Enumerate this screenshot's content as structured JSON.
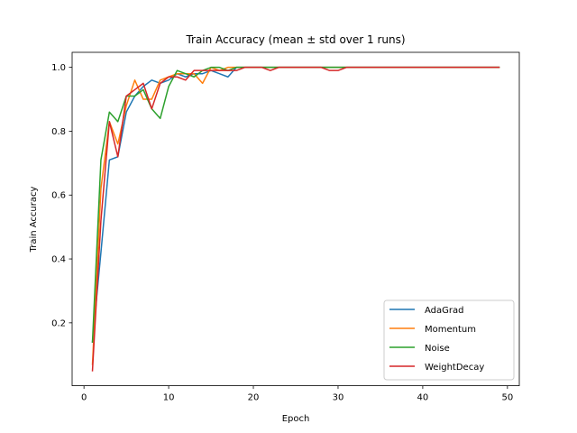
{
  "chart_data": {
    "type": "line",
    "title": "Train Accuracy (mean ± std over 1 runs)",
    "xlabel": "Epoch",
    "ylabel": "Train Accuracy",
    "xlim": [
      -1.4,
      51.4
    ],
    "ylim": [
      0.003,
      1.047
    ],
    "xticks": [
      0,
      10,
      20,
      30,
      40,
      50
    ],
    "yticks": [
      0.2,
      0.4,
      0.6,
      0.8,
      1.0
    ],
    "xtick_labels": [
      "0",
      "10",
      "20",
      "30",
      "40",
      "50"
    ],
    "ytick_labels": [
      "0.2",
      "0.4",
      "0.6",
      "0.8",
      "1.0"
    ],
    "grid": false,
    "legend_position": "lower-right",
    "x": [
      1,
      2,
      3,
      4,
      5,
      6,
      7,
      8,
      9,
      10,
      11,
      12,
      13,
      14,
      15,
      16,
      17,
      18,
      19,
      20,
      21,
      22,
      23,
      24,
      25,
      26,
      27,
      28,
      29,
      30,
      31,
      32,
      33,
      34,
      35,
      36,
      37,
      38,
      39,
      40,
      41,
      42,
      43,
      44,
      45,
      46,
      47,
      48,
      49
    ],
    "series": [
      {
        "name": "AdaGrad",
        "color": "#1f77b4",
        "values": [
          0.14,
          0.42,
          0.71,
          0.72,
          0.86,
          0.91,
          0.94,
          0.96,
          0.95,
          0.96,
          0.98,
          0.97,
          0.98,
          0.98,
          0.99,
          0.98,
          0.97,
          1.0,
          1.0,
          1.0,
          1.0,
          1.0,
          1.0,
          1.0,
          1.0,
          1.0,
          1.0,
          1.0,
          1.0,
          1.0,
          1.0,
          1.0,
          1.0,
          1.0,
          1.0,
          1.0,
          1.0,
          1.0,
          1.0,
          1.0,
          1.0,
          1.0,
          1.0,
          1.0,
          1.0,
          1.0,
          1.0,
          1.0,
          1.0
        ]
      },
      {
        "name": "Momentum",
        "color": "#ff7f0e",
        "values": [
          0.07,
          0.62,
          0.83,
          0.76,
          0.88,
          0.96,
          0.9,
          0.9,
          0.96,
          0.97,
          0.98,
          0.98,
          0.98,
          0.95,
          1.0,
          0.99,
          1.0,
          1.0,
          1.0,
          1.0,
          1.0,
          1.0,
          1.0,
          1.0,
          1.0,
          1.0,
          1.0,
          1.0,
          1.0,
          1.0,
          1.0,
          1.0,
          1.0,
          1.0,
          1.0,
          1.0,
          1.0,
          1.0,
          1.0,
          1.0,
          1.0,
          1.0,
          1.0,
          1.0,
          1.0,
          1.0,
          1.0,
          1.0,
          1.0
        ]
      },
      {
        "name": "Noise",
        "color": "#2ca02c",
        "values": [
          0.14,
          0.71,
          0.86,
          0.83,
          0.91,
          0.91,
          0.93,
          0.87,
          0.84,
          0.94,
          0.99,
          0.98,
          0.97,
          0.99,
          1.0,
          1.0,
          0.99,
          1.0,
          1.0,
          1.0,
          1.0,
          1.0,
          1.0,
          1.0,
          1.0,
          1.0,
          1.0,
          1.0,
          1.0,
          1.0,
          1.0,
          1.0,
          1.0,
          1.0,
          1.0,
          1.0,
          1.0,
          1.0,
          1.0,
          1.0,
          1.0,
          1.0,
          1.0,
          1.0,
          1.0,
          1.0,
          1.0,
          1.0,
          1.0
        ]
      },
      {
        "name": "WeightDecay",
        "color": "#d62728",
        "values": [
          0.05,
          0.52,
          0.83,
          0.72,
          0.91,
          0.93,
          0.95,
          0.87,
          0.95,
          0.97,
          0.97,
          0.96,
          0.99,
          0.99,
          0.99,
          0.99,
          0.99,
          0.99,
          1.0,
          1.0,
          1.0,
          0.99,
          1.0,
          1.0,
          1.0,
          1.0,
          1.0,
          1.0,
          0.99,
          0.99,
          1.0,
          1.0,
          1.0,
          1.0,
          1.0,
          1.0,
          1.0,
          1.0,
          1.0,
          1.0,
          1.0,
          1.0,
          1.0,
          1.0,
          1.0,
          1.0,
          1.0,
          1.0,
          1.0
        ]
      }
    ]
  }
}
